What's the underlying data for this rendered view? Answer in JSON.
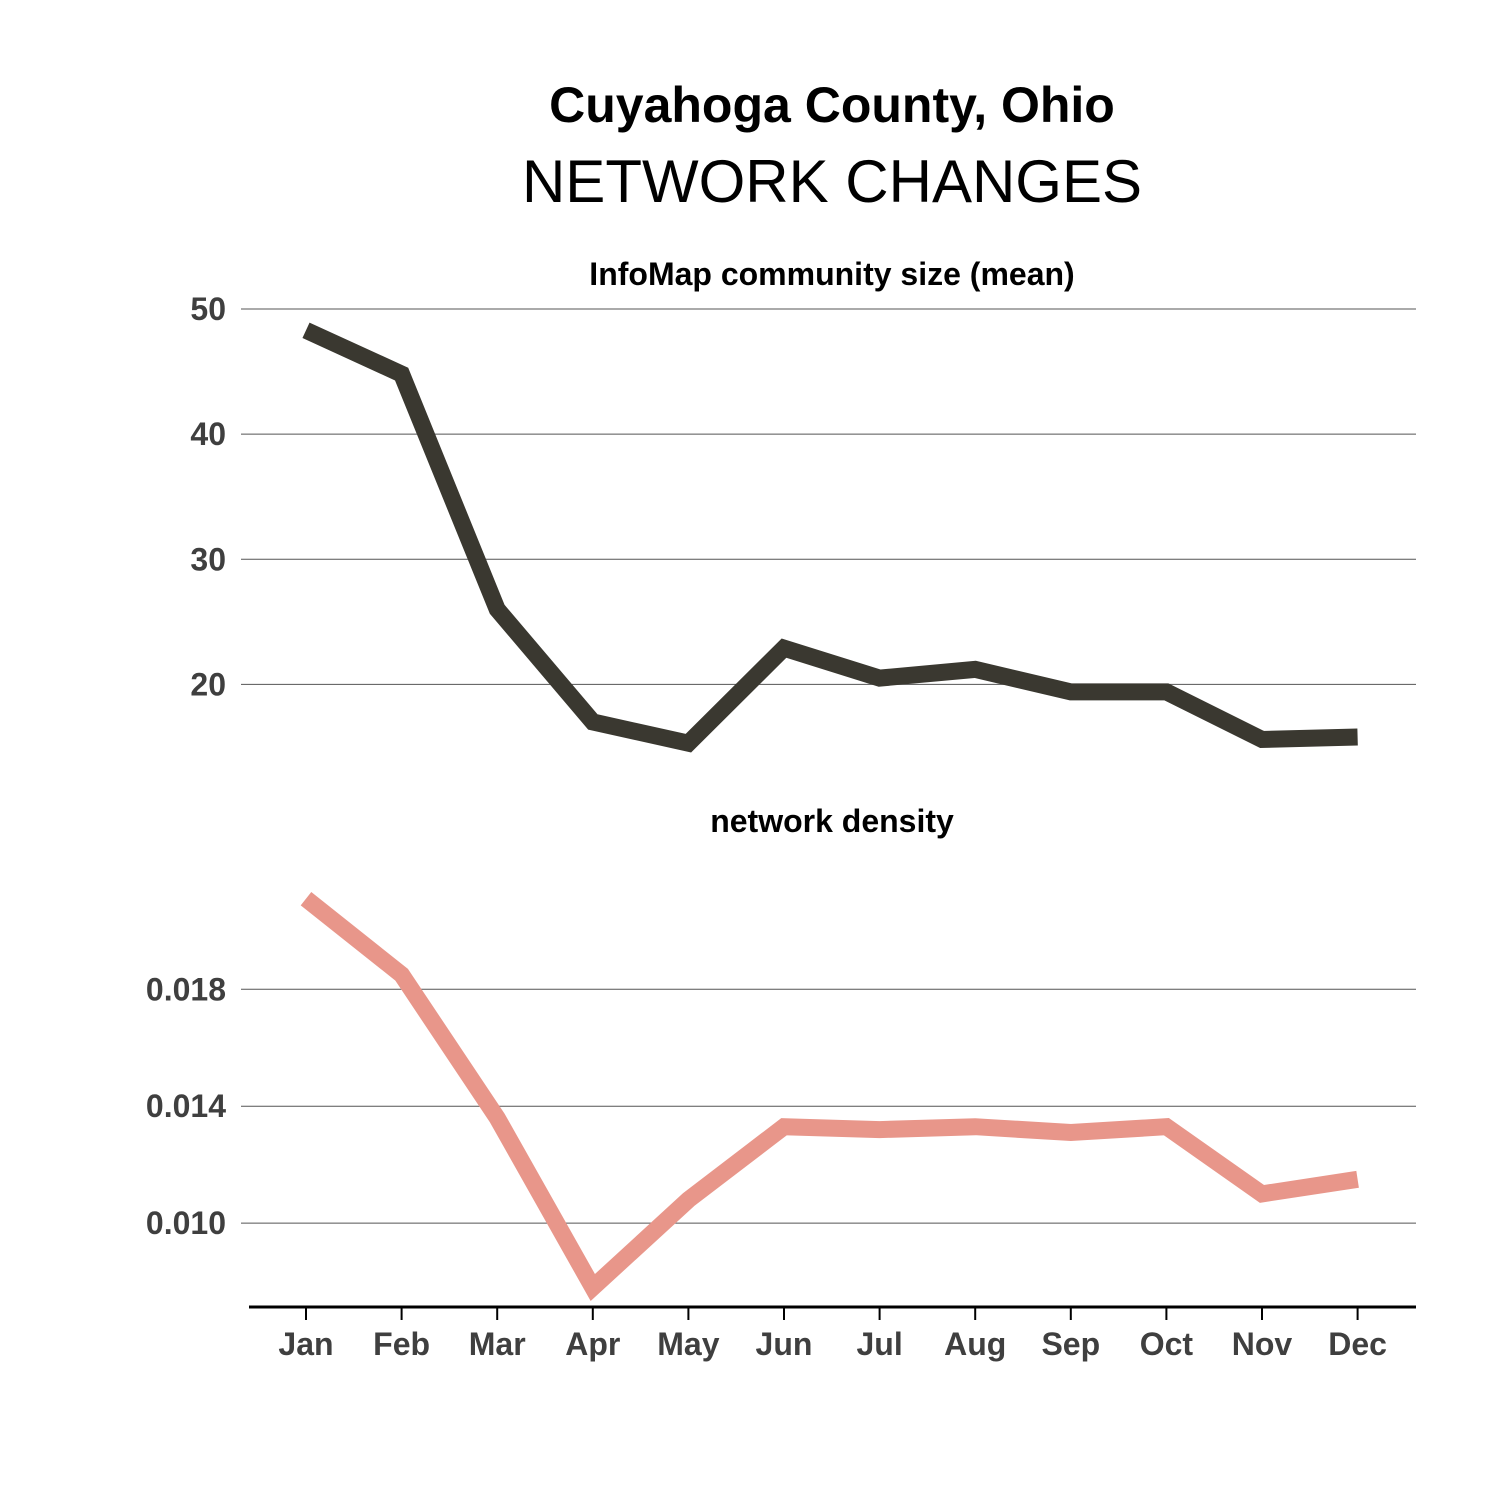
{
  "header": {
    "title": "Cuyahoga County, Ohio",
    "subtitle": "NETWORK CHANGES"
  },
  "chart_data": [
    {
      "type": "line",
      "title": "InfoMap community size (mean)",
      "xlabel": "",
      "ylabel": "",
      "categories": [
        "Jan",
        "Feb",
        "Mar",
        "Apr",
        "May",
        "Jun",
        "Jul",
        "Aug",
        "Sep",
        "Oct",
        "Nov",
        "Dec"
      ],
      "series": [
        {
          "values": [
            48.3,
            44.8,
            26.0,
            17.0,
            15.3,
            22.9,
            20.5,
            21.2,
            19.4,
            19.4,
            15.6,
            15.8
          ],
          "color": "#3a3830"
        }
      ],
      "yticks": [
        20,
        30,
        40,
        50
      ],
      "ylim": [
        13.0,
        50.0
      ],
      "grid": true,
      "legend": "none"
    },
    {
      "type": "line",
      "title": "network density",
      "xlabel": "",
      "ylabel": "",
      "categories": [
        "Jan",
        "Feb",
        "Mar",
        "Apr",
        "May",
        "Jun",
        "Jul",
        "Aug",
        "Sep",
        "Oct",
        "Nov",
        "Dec"
      ],
      "series": [
        {
          "values": [
            0.0211,
            0.0185,
            0.0136,
            0.0078,
            0.0108,
            0.0133,
            0.0132,
            0.0133,
            0.0131,
            0.0133,
            0.011,
            0.0115
          ],
          "color": "#e8968a"
        }
      ],
      "yticks": [
        0.01,
        0.014,
        0.018
      ],
      "ylim": [
        0.0072,
        0.0228
      ],
      "grid": true,
      "legend": "none"
    }
  ]
}
